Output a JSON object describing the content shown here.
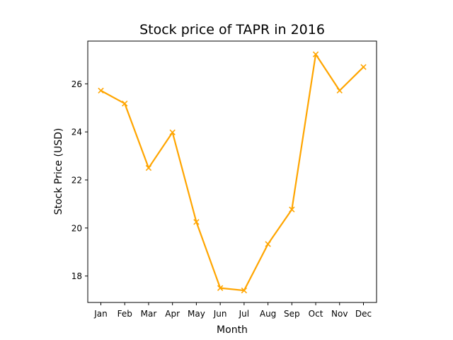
{
  "chart_data": {
    "type": "line",
    "title": "Stock price of TAPR in 2016",
    "xlabel": "Month",
    "ylabel": "Stock Price (USD)",
    "categories": [
      "Jan",
      "Feb",
      "Mar",
      "Apr",
      "May",
      "Jun",
      "Jul",
      "Aug",
      "Sep",
      "Oct",
      "Nov",
      "Dec"
    ],
    "series": [
      {
        "values": [
          25.72,
          25.18,
          22.5,
          23.98,
          20.25,
          17.5,
          17.4,
          19.33,
          20.77,
          27.23,
          25.72,
          26.7
        ],
        "color": "#FFA500",
        "marker": "x"
      }
    ],
    "ylim": [
      16.9,
      27.78
    ],
    "yticks": [
      18,
      20,
      22,
      24,
      26
    ],
    "grid": false
  }
}
